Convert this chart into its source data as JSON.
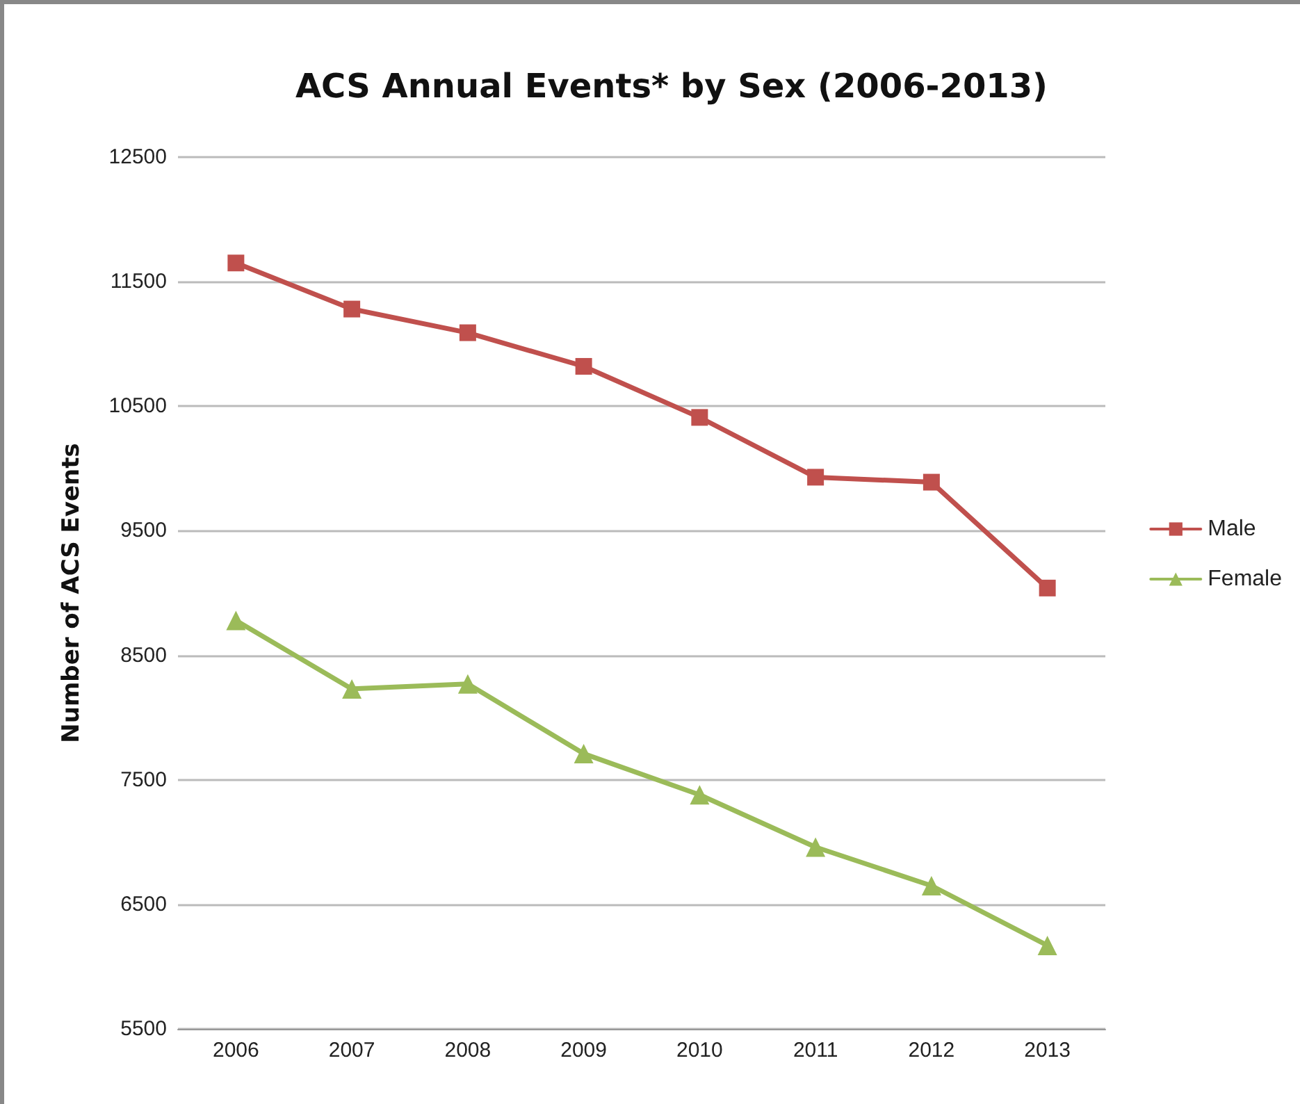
{
  "chart_data": {
    "type": "line",
    "title": "ACS Annual Events* by Sex (2006-2013)",
    "ylabel": "Number of ACS Events",
    "categories": [
      "2006",
      "2007",
      "2008",
      "2009",
      "2010",
      "2011",
      "2012",
      "2013"
    ],
    "series": [
      {
        "name": "Male",
        "color": "#c0504d",
        "marker": "square",
        "values": [
          11650,
          11280,
          11090,
          10820,
          10410,
          9930,
          9890,
          9040
        ]
      },
      {
        "name": "Female",
        "color": "#9bbb59",
        "marker": "triangle",
        "values": [
          8780,
          8230,
          8270,
          7710,
          7380,
          6960,
          6650,
          6170
        ]
      }
    ],
    "ylim": [
      5500,
      12500
    ],
    "yticks": [
      5500,
      6500,
      7500,
      8500,
      9500,
      10500,
      11500,
      12500
    ],
    "grid": "y",
    "legend": "right",
    "line_style": "solid"
  }
}
